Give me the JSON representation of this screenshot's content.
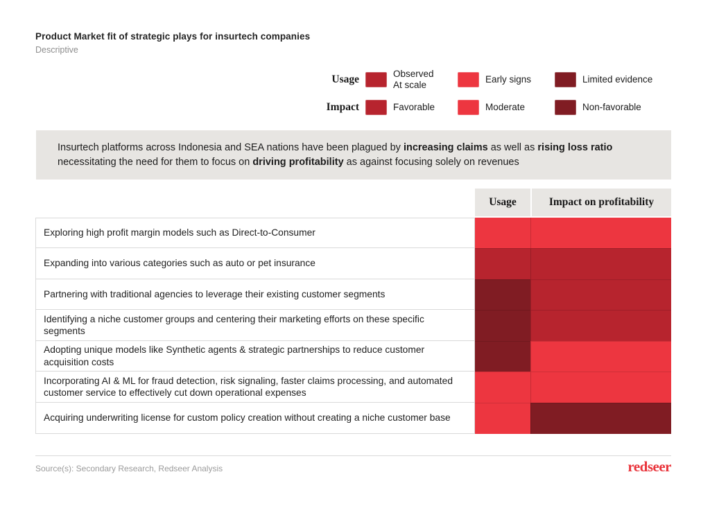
{
  "header": {
    "title": "Product Market fit of strategic plays for insurtech companies",
    "subtitle": "Descriptive"
  },
  "colors": {
    "bright_red": "#ED3640",
    "crimson": "#B7242E",
    "maroon": "#801C23",
    "callout_bg": "#E7E5E2",
    "header_bg": "#E8E6E3",
    "logo_red": "#E9343B"
  },
  "legend": {
    "rows": [
      {
        "label": "Usage",
        "items": [
          {
            "label": "Observed\nAt scale",
            "color": "#B7242E"
          },
          {
            "label": "Early signs",
            "color": "#ED3640"
          },
          {
            "label": "Limited evidence",
            "color": "#801C23"
          }
        ]
      },
      {
        "label": "Impact",
        "items": [
          {
            "label": "Favorable",
            "color": "#B7242E"
          },
          {
            "label": "Moderate",
            "color": "#ED3640"
          },
          {
            "label": "Non-favorable",
            "color": "#801C23"
          }
        ]
      }
    ]
  },
  "callout": {
    "p1": "Insurtech platforms across Indonesia and SEA nations have been plagued by ",
    "b1": "increasing claims",
    "p2": " as well as ",
    "b2": "rising loss ratio",
    "p3": " necessitating the need for them to focus on ",
    "b3": "driving profitability",
    "p4": " as against focusing solely on revenues"
  },
  "table": {
    "columns": [
      "Usage",
      "Impact on profitability"
    ],
    "rows": [
      {
        "strategy": "Exploring high profit margin models such as Direct-to-Consumer",
        "usage": "Early signs",
        "usage_color": "#ED3640",
        "impact": "Moderate",
        "impact_color": "#ED3640"
      },
      {
        "strategy": "Expanding into various categories such as auto or pet insurance",
        "usage": "Observed at scale",
        "usage_color": "#B7242E",
        "impact": "Favorable",
        "impact_color": "#B7242E"
      },
      {
        "strategy": "Partnering with traditional agencies to leverage their existing customer segments",
        "usage": "Limited evidence",
        "usage_color": "#801C23",
        "impact": "Favorable",
        "impact_color": "#B7242E"
      },
      {
        "strategy": "Identifying a niche customer groups and centering their marketing efforts on these specific segments",
        "usage": "Limited evidence",
        "usage_color": "#801C23",
        "impact": "Favorable",
        "impact_color": "#B7242E"
      },
      {
        "strategy": "Adopting unique models like Synthetic agents & strategic partnerships to reduce customer acquisition costs",
        "usage": "Limited evidence",
        "usage_color": "#801C23",
        "impact": "Moderate",
        "impact_color": "#ED3640"
      },
      {
        "strategy": "Incorporating AI & ML for fraud detection, risk signaling, faster claims processing, and automated customer service to effectively cut down operational expenses",
        "usage": "Early signs",
        "usage_color": "#ED3640",
        "impact": "Moderate",
        "impact_color": "#ED3640"
      },
      {
        "strategy": "Acquiring underwriting license for custom policy creation without creating a niche customer base",
        "usage": "Early signs",
        "usage_color": "#ED3640",
        "impact": "Non-favorable",
        "impact_color": "#801C23"
      }
    ]
  },
  "footer": {
    "source": "Source(s): Secondary Research, Redseer Analysis",
    "logo": "redseer"
  },
  "chart_data": {
    "type": "heatmap",
    "title": "Product Market fit of strategic plays for insurtech companies",
    "subtitle": "Descriptive",
    "columns": [
      "Usage",
      "Impact on profitability"
    ],
    "rows": [
      "Exploring high profit margin models such as Direct-to-Consumer",
      "Expanding into various categories such as auto or pet insurance",
      "Partnering with traditional agencies to leverage their existing customer segments",
      "Identifying a niche customer groups and centering their marketing efforts on these specific segments",
      "Adopting unique models like Synthetic agents & strategic partnerships to reduce customer acquisition costs",
      "Incorporating AI & ML for fraud detection, risk signaling, faster claims processing, and automated customer service to effectively cut down operational expenses",
      "Acquiring underwriting license for custom policy creation without creating a niche customer base"
    ],
    "values": [
      [
        "Early signs",
        "Moderate"
      ],
      [
        "Observed at scale",
        "Favorable"
      ],
      [
        "Limited evidence",
        "Favorable"
      ],
      [
        "Limited evidence",
        "Favorable"
      ],
      [
        "Limited evidence",
        "Moderate"
      ],
      [
        "Early signs",
        "Moderate"
      ],
      [
        "Early signs",
        "Non-favorable"
      ]
    ],
    "color_scale": {
      "Observed at scale | Favorable": "#B7242E",
      "Early signs | Moderate": "#ED3640",
      "Limited evidence | Non-favorable": "#801C23"
    },
    "legend_position": "top-right",
    "annotation": "Insurtech platforms across Indonesia and SEA nations have been plagued by increasing claims as well as rising loss ratio necessitating the need for them to focus on driving profitability as against focusing solely on revenues"
  }
}
